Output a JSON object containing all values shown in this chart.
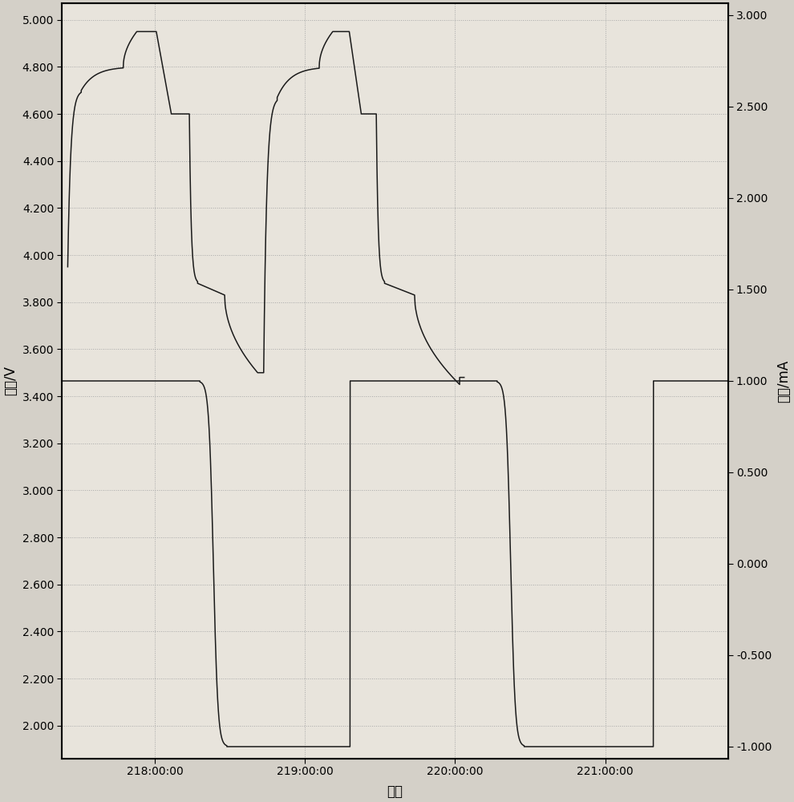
{
  "xlabel": "时间",
  "ylabel_left": "电压/V",
  "ylabel_right": "电流/mA",
  "xlim": [
    217.38,
    221.82
  ],
  "ylim_left": [
    1.86,
    5.07
  ],
  "ylim_right": [
    -1.065,
    3.065
  ],
  "xticks": [
    218.0,
    219.0,
    220.0,
    221.0
  ],
  "xtick_labels": [
    "218:00:00",
    "219:00:00",
    "220:00:00",
    "221:00:00"
  ],
  "yticks_left": [
    2.0,
    2.2,
    2.4,
    2.6,
    2.8,
    3.0,
    3.2,
    3.4,
    3.6,
    3.8,
    4.0,
    4.2,
    4.4,
    4.6,
    4.8,
    5.0
  ],
  "yticks_right": [
    -1.0,
    -0.5,
    0.0,
    0.5,
    1.0,
    1.5,
    2.0,
    2.5,
    3.0
  ],
  "bg_color": "#d4d0c8",
  "line_color": "#1a1a1a",
  "grid_color": "#a8a8a8",
  "plot_bg_color": "#e8e4dc"
}
